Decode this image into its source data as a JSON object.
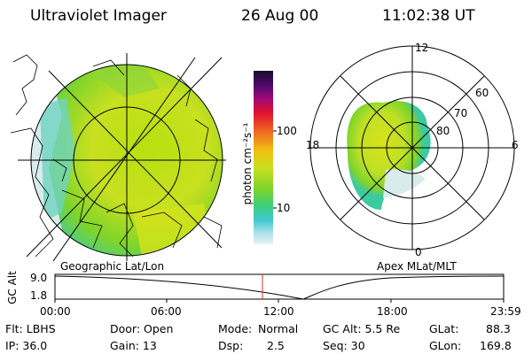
{
  "header": {
    "instrument": "Ultraviolet Imager",
    "date": "26 Aug 00",
    "time": "11:02:38 UT"
  },
  "colorbar": {
    "unit_label": "photon cm⁻²s⁻¹",
    "tick_100": "100",
    "tick_10": "10"
  },
  "left_panel": {
    "caption": "Geographic Lat/Lon"
  },
  "right_panel": {
    "caption": "Apex MLat/MLT",
    "mlt_labels": {
      "top": "12",
      "left": "18",
      "right": "6",
      "bottom": "0"
    },
    "lat_labels": [
      "60",
      "70",
      "80"
    ]
  },
  "timeline": {
    "axis_label": "GC Alt",
    "y_max": "9.0",
    "y_min": "1.8",
    "x_ticks": [
      "00:00",
      "06:00",
      "12:00",
      "18:00",
      "23:59"
    ]
  },
  "status": {
    "filter": "Flt: LBHS",
    "ip": "IP: 36.0",
    "door": "Door: Open",
    "gain": "Gain: 13",
    "mode_key": "Mode:",
    "mode_val": "Normal",
    "dsp_key": "Dsp:",
    "dsp_val": "2.5",
    "gc_alt": "GC Alt: 5.5 Re",
    "seq": "Seq: 30",
    "glat_key": "GLat:",
    "glat_val": "88.3",
    "glon_key": "GLon:",
    "glon_val": "169.8"
  }
}
